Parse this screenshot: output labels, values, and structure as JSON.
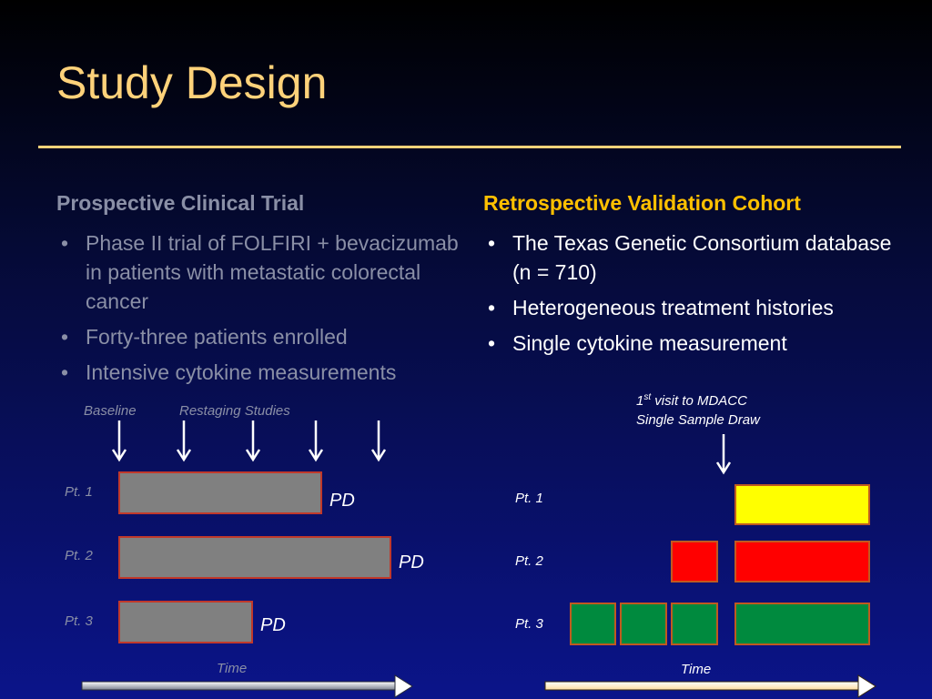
{
  "slide": {
    "title": "Study Design"
  },
  "left": {
    "heading": "Prospective Clinical Trial",
    "bullets": [
      "Phase II trial of FOLFIRI + bevacizumab in patients with metastatic colorectal cancer",
      "Forty-three patients enrolled",
      "Intensive cytokine measurements"
    ],
    "timeline": {
      "baseline_label": "Baseline",
      "restaging_label": "Restaging Studies",
      "time_label": "Time",
      "patients": [
        {
          "label": "Pt. 1",
          "end_label": "PD"
        },
        {
          "label": "Pt. 2",
          "end_label": "PD"
        },
        {
          "label": "Pt. 3",
          "end_label": "PD"
        }
      ],
      "bar_color": "#808080",
      "bar_border": "#c0392b"
    }
  },
  "right": {
    "heading": "Retrospective Validation Cohort",
    "bullets": [
      "The Texas Genetic Consortium database (n = 710)",
      "Heterogeneous treatment histories",
      "Single cytokine measurement"
    ],
    "timeline": {
      "visit_label_num": "1",
      "visit_label_sup": "st",
      "visit_label_rest": " visit to MDACC",
      "draw_label": "Single Sample Draw",
      "time_label": "Time",
      "patients": [
        {
          "label": "Pt. 1",
          "color": "#ffff00"
        },
        {
          "label": "Pt. 2",
          "color": "#ff0000"
        },
        {
          "label": "Pt. 3",
          "color": "#008a3e"
        }
      ],
      "bar_border": "#c05a20"
    }
  }
}
